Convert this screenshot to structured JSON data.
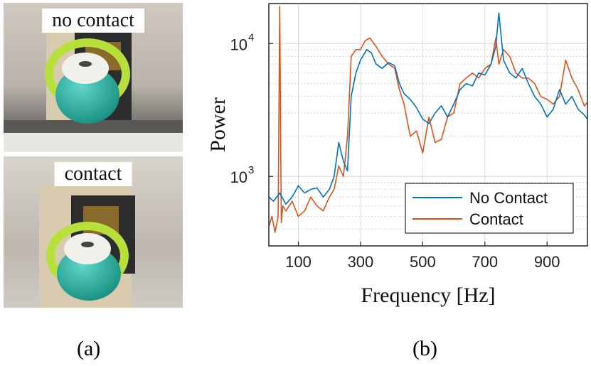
{
  "photos": {
    "top_label": "no contact",
    "bottom_label": "contact"
  },
  "captions": {
    "a": "(a)",
    "b": "(b)"
  },
  "colors": {
    "no_contact": "#0072BD",
    "contact": "#D95319",
    "grid": "#d9d9d9",
    "teal": "#2bb5a5",
    "lime": "#b8e03a"
  },
  "chart_data": {
    "type": "line",
    "xlabel": "Frequency [Hz]",
    "ylabel": "Power",
    "xlim": [
      5,
      1030
    ],
    "ylim": [
      300,
      20000
    ],
    "yscale": "log",
    "xticks": [
      100,
      300,
      500,
      700,
      900
    ],
    "yticks": [
      {
        "value": 1000,
        "base": "10",
        "exp": "3"
      },
      {
        "value": 10000,
        "base": "10",
        "exp": "4"
      }
    ],
    "grid": true,
    "legend": "bottom-right",
    "series": [
      {
        "name": "No Contact",
        "x": [
          5,
          20,
          40,
          60,
          80,
          100,
          120,
          140,
          160,
          180,
          200,
          215,
          230,
          245,
          258,
          270,
          285,
          300,
          320,
          335,
          350,
          370,
          390,
          410,
          425,
          440,
          460,
          480,
          500,
          520,
          540,
          560,
          580,
          600,
          620,
          640,
          660,
          680,
          700,
          720,
          735,
          745,
          760,
          780,
          800,
          820,
          840,
          860,
          880,
          900,
          920,
          940,
          960,
          980,
          1000,
          1020,
          1030
        ],
        "y": [
          700,
          650,
          750,
          620,
          700,
          850,
          750,
          800,
          820,
          700,
          800,
          1000,
          1800,
          1300,
          1100,
          4000,
          6000,
          7500,
          9000,
          8500,
          7000,
          6500,
          7200,
          6800,
          5000,
          4200,
          3800,
          3300,
          2700,
          2500,
          3000,
          3400,
          2800,
          3500,
          4500,
          5000,
          4800,
          6000,
          5800,
          7000,
          9500,
          17000,
          7500,
          6000,
          5500,
          6500,
          5000,
          4000,
          3500,
          2800,
          3200,
          4500,
          3500,
          4000,
          3200,
          2900,
          2700
        ]
      },
      {
        "name": "Contact",
        "x": [
          5,
          15,
          25,
          35,
          40,
          45,
          50,
          60,
          80,
          100,
          120,
          140,
          160,
          180,
          200,
          215,
          230,
          245,
          258,
          270,
          285,
          300,
          315,
          330,
          350,
          370,
          390,
          410,
          425,
          440,
          460,
          480,
          500,
          520,
          540,
          560,
          580,
          600,
          620,
          640,
          660,
          680,
          700,
          720,
          735,
          745,
          760,
          780,
          800,
          820,
          840,
          860,
          880,
          900,
          920,
          940,
          960,
          980,
          1000,
          1020,
          1030
        ],
        "y": [
          420,
          500,
          380,
          500,
          19000,
          450,
          600,
          550,
          650,
          500,
          550,
          700,
          600,
          550,
          700,
          800,
          1200,
          1000,
          2000,
          8000,
          9000,
          9000,
          10500,
          11000,
          9500,
          8000,
          7000,
          6500,
          4500,
          3500,
          2000,
          2200,
          1500,
          2800,
          1800,
          1900,
          2800,
          3000,
          5000,
          5500,
          6000,
          5500,
          6500,
          7000,
          11000,
          7000,
          9000,
          8000,
          6000,
          5500,
          5500,
          5000,
          4000,
          3800,
          3500,
          4000,
          7500,
          5500,
          4500,
          3400,
          3600
        ]
      }
    ]
  }
}
